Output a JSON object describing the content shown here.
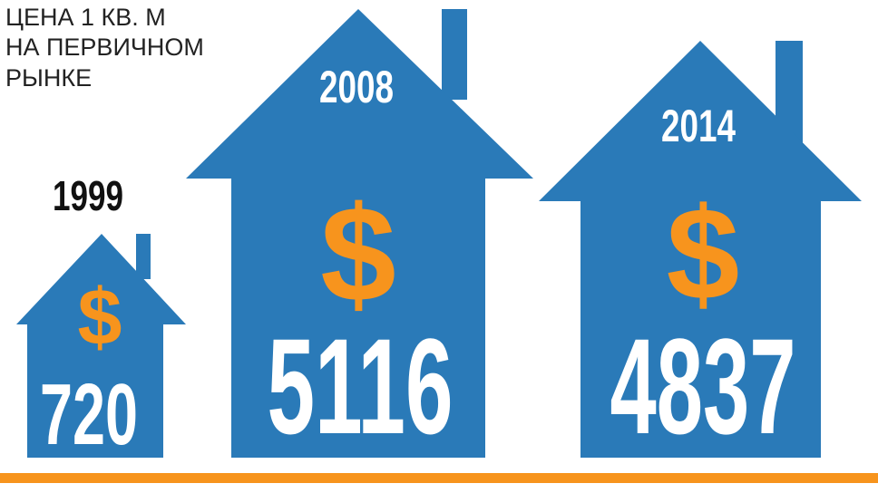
{
  "title": [
    "ЦЕНА 1 КВ. М",
    "НА ПЕРВИЧНОМ",
    "РЫНКЕ"
  ],
  "items": [
    {
      "year": "1999",
      "symbol": "$",
      "value": 720
    },
    {
      "year": "2008",
      "symbol": "$",
      "value": 5116
    },
    {
      "year": "2014",
      "symbol": "$",
      "value": 4837
    }
  ]
}
